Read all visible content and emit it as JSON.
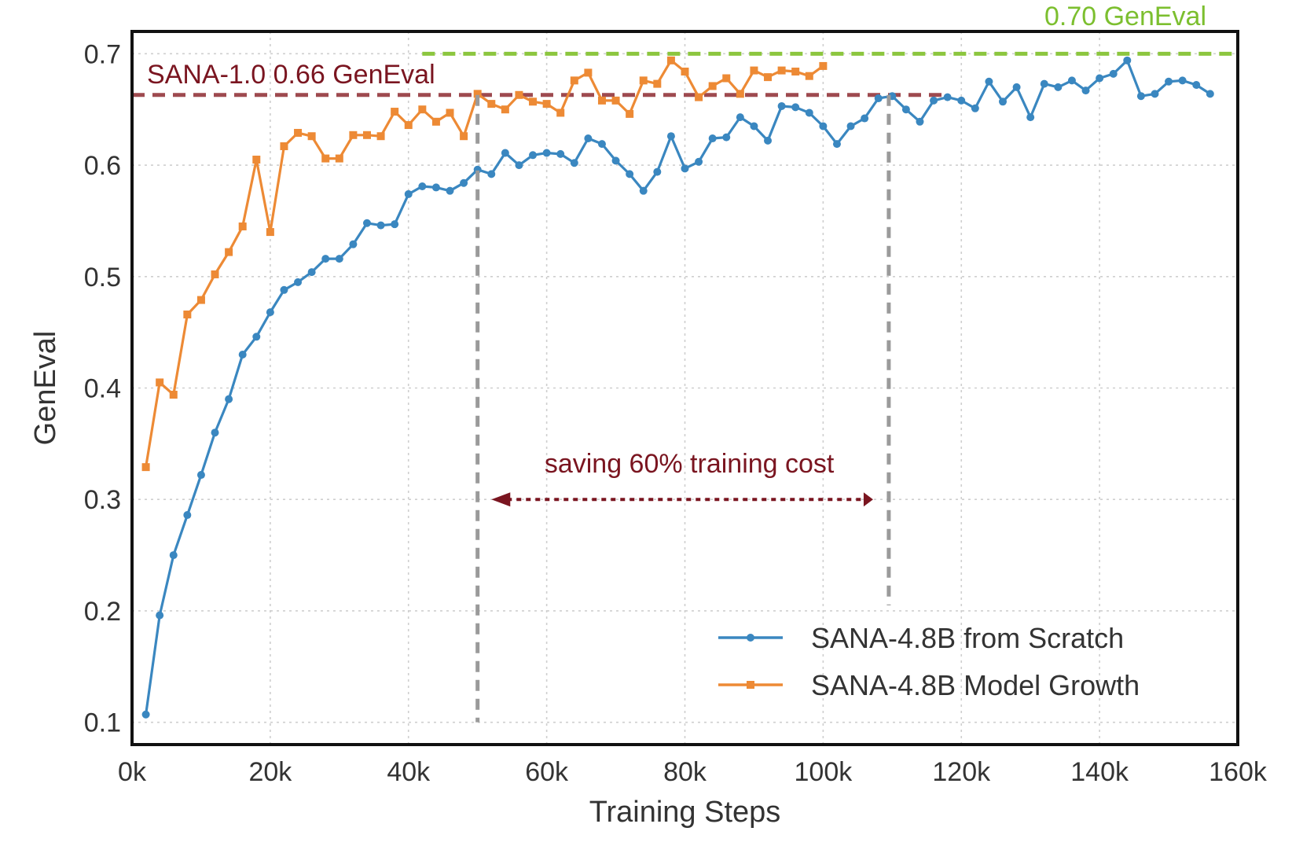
{
  "chart_data": {
    "type": "line",
    "title": "",
    "xlabel": "Training Steps",
    "ylabel": "GenEval",
    "xlim": [
      0,
      160000
    ],
    "ylim": [
      0.08,
      0.72
    ],
    "xticks": [
      0,
      20000,
      40000,
      60000,
      80000,
      100000,
      120000,
      140000,
      160000
    ],
    "xtick_labels": [
      "0k",
      "20k",
      "40k",
      "60k",
      "80k",
      "100k",
      "120k",
      "140k",
      "160k"
    ],
    "yticks": [
      0.1,
      0.2,
      0.3,
      0.4,
      0.5,
      0.6,
      0.7
    ],
    "ytick_labels": [
      "0.1",
      "0.2",
      "0.3",
      "0.4",
      "0.5",
      "0.6",
      "0.7"
    ],
    "grid": true,
    "legend_position": "bottom-right",
    "series": [
      {
        "name": "SANA-4.8B from Scratch",
        "color": "#3a87c0",
        "marker": "circle",
        "x": [
          2000,
          4000,
          6000,
          8000,
          10000,
          12000,
          14000,
          16000,
          18000,
          20000,
          22000,
          24000,
          26000,
          28000,
          30000,
          32000,
          34000,
          36000,
          38000,
          40000,
          42000,
          44000,
          46000,
          48000,
          50000,
          52000,
          54000,
          56000,
          58000,
          60000,
          62000,
          64000,
          66000,
          68000,
          70000,
          72000,
          74000,
          76000,
          78000,
          80000,
          82000,
          84000,
          86000,
          88000,
          90000,
          92000,
          94000,
          96000,
          98000,
          100000,
          102000,
          104000,
          106000,
          108000,
          110000,
          112000,
          114000,
          116000,
          118000,
          120000,
          122000,
          124000,
          126000,
          128000,
          130000,
          132000,
          134000,
          136000,
          138000,
          140000,
          142000,
          144000,
          146000,
          148000,
          150000,
          152000,
          154000,
          156000
        ],
        "values": [
          0.107,
          0.196,
          0.25,
          0.286,
          0.322,
          0.36,
          0.39,
          0.43,
          0.446,
          0.468,
          0.488,
          0.495,
          0.504,
          0.516,
          0.516,
          0.529,
          0.548,
          0.546,
          0.547,
          0.574,
          0.581,
          0.58,
          0.577,
          0.584,
          0.596,
          0.592,
          0.611,
          0.6,
          0.609,
          0.611,
          0.61,
          0.602,
          0.624,
          0.619,
          0.604,
          0.592,
          0.577,
          0.594,
          0.626,
          0.597,
          0.603,
          0.624,
          0.625,
          0.643,
          0.635,
          0.622,
          0.653,
          0.652,
          0.647,
          0.635,
          0.619,
          0.635,
          0.642,
          0.66,
          0.662,
          0.65,
          0.639,
          0.658,
          0.661,
          0.658,
          0.651,
          0.675,
          0.657,
          0.67,
          0.643,
          0.673,
          0.67,
          0.676,
          0.667,
          0.678,
          0.682,
          0.694,
          0.662,
          0.664,
          0.675,
          0.676,
          0.672,
          0.664
        ]
      },
      {
        "name": "SANA-4.8B Model Growth",
        "color": "#ed8a35",
        "marker": "square",
        "x": [
          2000,
          4000,
          6000,
          8000,
          10000,
          12000,
          14000,
          16000,
          18000,
          20000,
          22000,
          24000,
          26000,
          28000,
          30000,
          32000,
          34000,
          36000,
          38000,
          40000,
          42000,
          44000,
          46000,
          48000,
          50000,
          52000,
          54000,
          56000,
          58000,
          60000,
          62000,
          64000,
          66000,
          68000,
          70000,
          72000,
          74000,
          76000,
          78000,
          80000,
          82000,
          84000,
          86000,
          88000,
          90000,
          92000,
          94000,
          96000,
          98000,
          100000
        ],
        "values": [
          0.329,
          0.405,
          0.394,
          0.466,
          0.479,
          0.502,
          0.522,
          0.545,
          0.605,
          0.54,
          0.617,
          0.629,
          0.626,
          0.606,
          0.606,
          0.627,
          0.627,
          0.626,
          0.648,
          0.636,
          0.65,
          0.639,
          0.647,
          0.626,
          0.664,
          0.655,
          0.65,
          0.663,
          0.657,
          0.655,
          0.647,
          0.676,
          0.683,
          0.658,
          0.658,
          0.646,
          0.676,
          0.673,
          0.694,
          0.684,
          0.661,
          0.671,
          0.678,
          0.664,
          0.685,
          0.679,
          0.685,
          0.684,
          0.68,
          0.689
        ]
      }
    ],
    "reference_lines": [
      {
        "label": "SANA-1.0 0.66 GenEval",
        "y": 0.663,
        "x_start": 0,
        "x_end": 118000,
        "color": "#9e4a4f",
        "text_color": "#7a1520"
      },
      {
        "label": "0.70 GenEval",
        "y": 0.7,
        "x_start": 42000,
        "x_end": 160000,
        "color": "#8cc63f",
        "text_color": "#7cbf2f"
      }
    ],
    "vertical_markers": [
      {
        "x": 50000,
        "y_top": 0.663,
        "y_bottom": 0.1,
        "color": "#9a9a9a"
      },
      {
        "x": 109500,
        "y_top": 0.663,
        "y_bottom": 0.205,
        "color": "#9a9a9a"
      }
    ],
    "arrow_annotation": {
      "text": "saving 60% training cost",
      "x_start": 107000,
      "x_end": 52000,
      "y": 0.3,
      "color": "#7a1520"
    }
  }
}
